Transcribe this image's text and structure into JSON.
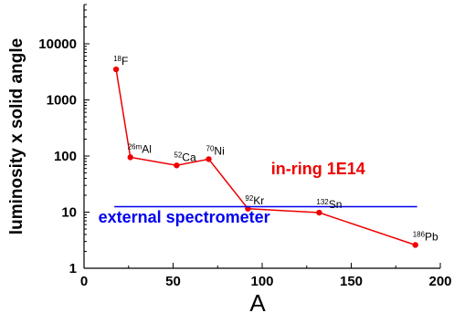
{
  "chart_data": {
    "type": "line",
    "xlabel": "A",
    "ylabel": "luminosity x solid angle",
    "xlim": [
      0,
      200
    ],
    "ylim": [
      1,
      50000
    ],
    "y_scale": "log",
    "x_ticks": [
      "0",
      "50",
      "100",
      "150",
      "200"
    ],
    "x_tick_values": [
      0,
      50,
      100,
      150,
      200
    ],
    "y_ticks": [
      "1",
      "10",
      "100",
      "1000",
      "10000"
    ],
    "y_tick_values": [
      1,
      10,
      100,
      1000,
      10000
    ],
    "series": [
      {
        "color": "#ee0000",
        "points": [
          {
            "x": 18,
            "y": 3500,
            "mass": "18",
            "element": "F"
          },
          {
            "x": 26,
            "y": 95,
            "mass": "26m",
            "element": "Al"
          },
          {
            "x": 52,
            "y": 68,
            "mass": "52",
            "element": "Ca"
          },
          {
            "x": 70,
            "y": 88,
            "mass": "70",
            "element": "Ni"
          },
          {
            "x": 92,
            "y": 11.5,
            "mass": "92",
            "element": "Kr"
          },
          {
            "x": 132,
            "y": 9.8,
            "mass": "132",
            "element": "Sn"
          },
          {
            "x": 186,
            "y": 2.6,
            "mass": "186",
            "element": "Pb"
          }
        ]
      },
      {
        "color": "#0000ee",
        "points": [
          {
            "x": 17,
            "y": 12.5
          },
          {
            "x": 187,
            "y": 12.5
          }
        ]
      }
    ],
    "annotations": [
      {
        "text": "in-ring 1E14",
        "color": "#ee0000",
        "x": 105,
        "y": 47
      },
      {
        "text": "external spectrometer",
        "color": "#0000ee",
        "x": 8,
        "y": 6.5
      }
    ]
  }
}
